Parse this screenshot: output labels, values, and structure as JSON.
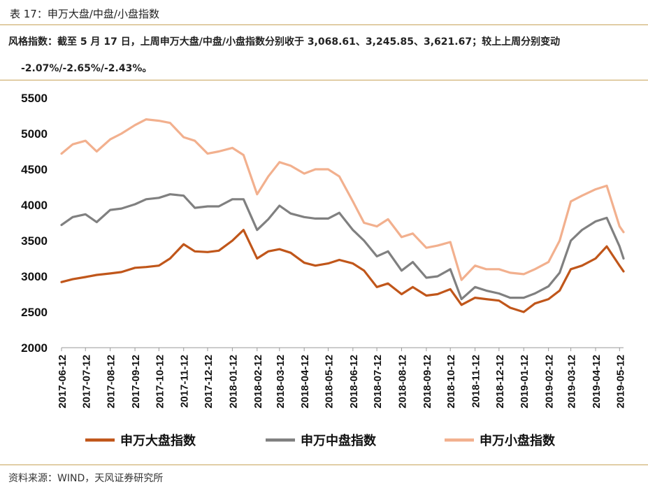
{
  "header": {
    "figure_title": "表 17：申万大盘/中盘/小盘指数"
  },
  "summary": {
    "line1": "风格指数：截至 5 月 17 日，上周申万大盘/中盘/小盘指数分别收于 3,068.61、3,245.85、3,621.67；较上上周分别变动",
    "line2": "-2.07%/-2.65%/-2.43%。"
  },
  "footer": {
    "source": "资料来源：WIND，天风证券研究所"
  },
  "colors": {
    "large_cap": "#c0561a",
    "mid_cap": "#808080",
    "small_cap": "#f2b08e",
    "rule": "#c8a45a"
  },
  "chart_data": {
    "type": "line",
    "title": "",
    "xlabel": "",
    "ylabel": "",
    "ylim": [
      2000,
      5500
    ],
    "yticks": [
      2000,
      2500,
      3000,
      3500,
      4000,
      4500,
      5000,
      5500
    ],
    "x_tick_labels": [
      "2017-06-12",
      "2017-07-12",
      "2017-08-12",
      "2017-09-12",
      "2017-10-12",
      "2017-11-12",
      "2017-12-12",
      "2018-01-12",
      "2018-02-12",
      "2018-03-12",
      "2018-04-12",
      "2018-05-12",
      "2018-06-12",
      "2018-07-12",
      "2018-08-12",
      "2018-09-12",
      "2018-10-12",
      "2018-11-12",
      "2018-12-12",
      "2019-01-12",
      "2019-02-12",
      "2019-03-12",
      "2019-04-12",
      "2019-05-12"
    ],
    "grid": false,
    "legend_position": "bottom",
    "sampling": "approximately semi-monthly, read from the plotted lines",
    "x": [
      "2017-06-12",
      "2017-06-26",
      "2017-07-12",
      "2017-07-26",
      "2017-08-12",
      "2017-08-26",
      "2017-09-12",
      "2017-09-26",
      "2017-10-12",
      "2017-10-26",
      "2017-11-12",
      "2017-11-26",
      "2017-12-12",
      "2017-12-26",
      "2018-01-12",
      "2018-01-26",
      "2018-02-12",
      "2018-02-26",
      "2018-03-12",
      "2018-03-26",
      "2018-04-12",
      "2018-04-26",
      "2018-05-12",
      "2018-05-26",
      "2018-06-12",
      "2018-06-26",
      "2018-07-12",
      "2018-07-26",
      "2018-08-12",
      "2018-08-26",
      "2018-09-12",
      "2018-09-26",
      "2018-10-12",
      "2018-10-26",
      "2018-11-12",
      "2018-11-26",
      "2018-12-12",
      "2018-12-26",
      "2019-01-12",
      "2019-01-26",
      "2019-02-12",
      "2019-02-26",
      "2019-03-12",
      "2019-03-26",
      "2019-04-12",
      "2019-04-26",
      "2019-05-12",
      "2019-05-17"
    ],
    "series": [
      {
        "name": "申万大盘指数",
        "color": "#c0561a",
        "values": [
          2920,
          2960,
          2990,
          3020,
          3040,
          3060,
          3120,
          3130,
          3150,
          3250,
          3450,
          3350,
          3340,
          3360,
          3500,
          3650,
          3250,
          3350,
          3380,
          3330,
          3190,
          3150,
          3180,
          3230,
          3180,
          3080,
          2850,
          2900,
          2750,
          2850,
          2730,
          2750,
          2820,
          2600,
          2700,
          2680,
          2660,
          2560,
          2500,
          2620,
          2680,
          2800,
          3100,
          3150,
          3250,
          3420,
          3150,
          3070
        ]
      },
      {
        "name": "申万中盘指数",
        "color": "#808080",
        "values": [
          3720,
          3830,
          3870,
          3760,
          3930,
          3950,
          4010,
          4080,
          4100,
          4150,
          4130,
          3960,
          3980,
          3980,
          4080,
          4080,
          3650,
          3800,
          3990,
          3880,
          3830,
          3810,
          3810,
          3890,
          3650,
          3500,
          3280,
          3350,
          3080,
          3200,
          2980,
          3000,
          3100,
          2680,
          2850,
          2800,
          2760,
          2700,
          2700,
          2760,
          2860,
          3050,
          3500,
          3650,
          3770,
          3820,
          3420,
          3250
        ]
      },
      {
        "name": "申万小盘指数",
        "color": "#f2b08e",
        "values": [
          4720,
          4850,
          4900,
          4750,
          4920,
          5000,
          5120,
          5200,
          5180,
          5150,
          4950,
          4900,
          4720,
          4750,
          4800,
          4700,
          4150,
          4400,
          4600,
          4550,
          4440,
          4500,
          4500,
          4400,
          4050,
          3750,
          3700,
          3800,
          3550,
          3600,
          3400,
          3430,
          3480,
          2950,
          3150,
          3100,
          3100,
          3050,
          3030,
          3100,
          3200,
          3500,
          4050,
          4130,
          4220,
          4270,
          3700,
          3620
        ]
      }
    ]
  }
}
